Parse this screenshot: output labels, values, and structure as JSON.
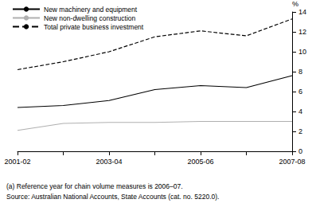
{
  "chart_data": {
    "type": "line",
    "y_label": "%",
    "categories": [
      "2001-02",
      null,
      "2003-04",
      null,
      "2005-06",
      null,
      "2007-08"
    ],
    "series": [
      {
        "name": "New machinery and equipment",
        "color": "#000000",
        "line_style": "solid",
        "values": [
          4.4,
          4.6,
          5.1,
          6.2,
          6.6,
          6.4,
          7.6
        ]
      },
      {
        "name": "New non-dwelling construction",
        "color": "#b0b0b0",
        "line_style": "solid",
        "values": [
          2.1,
          2.8,
          2.9,
          2.9,
          3.0,
          3.0,
          3.0
        ]
      },
      {
        "name": "Total private business investment",
        "color": "#000000",
        "line_style": "dashed",
        "values": [
          8.2,
          9.0,
          10.0,
          11.5,
          12.1,
          11.6,
          13.3
        ]
      }
    ],
    "ylim": [
      0,
      14
    ],
    "yticks": [
      0,
      2,
      4,
      6,
      8,
      10,
      12,
      14
    ],
    "grid": false,
    "legend": "top-left",
    "annotations": [
      "(a) Reference year for chain volume measures is 2006–07.",
      "Source: Australian National Accounts, State Accounts (cat. no. 5220.0)."
    ]
  }
}
